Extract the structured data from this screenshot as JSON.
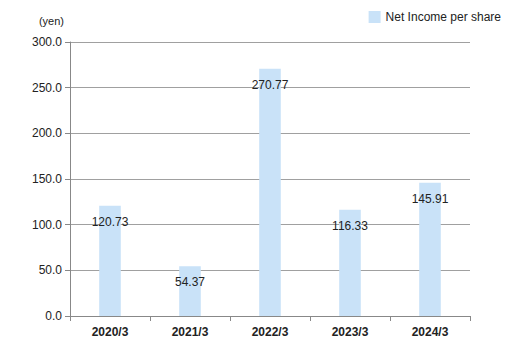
{
  "chart_data": {
    "type": "bar",
    "ylabel": "(yen)",
    "categories": [
      "2020/3",
      "2021/3",
      "2022/3",
      "2023/3",
      "2024/3"
    ],
    "series": [
      {
        "name": "Net Income per share",
        "color": "#c9e2f8",
        "values": [
          120.73,
          54.37,
          270.77,
          116.33,
          145.91
        ]
      }
    ],
    "ylim": [
      0,
      300
    ],
    "yticks": [
      {
        "value": 0,
        "label": "0.0"
      },
      {
        "value": 50,
        "label": "50.0"
      },
      {
        "value": 100,
        "label": "100.0"
      },
      {
        "value": 150,
        "label": "150.0"
      },
      {
        "value": 200,
        "label": "200.0"
      },
      {
        "value": 250,
        "label": "250.0"
      },
      {
        "value": 300,
        "label": "300.0"
      }
    ],
    "grid": true,
    "legend": "top-right",
    "data_labels": true
  }
}
